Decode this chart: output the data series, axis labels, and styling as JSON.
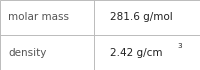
{
  "rows": [
    {
      "label": "molar mass",
      "value": "281.6 g/mol",
      "superscript": null
    },
    {
      "label": "density",
      "value": "2.42 g/cm",
      "superscript": "3"
    }
  ],
  "background_color": "#ffffff",
  "border_color": "#bbbbbb",
  "divider_color": "#bbbbbb",
  "label_color": "#555555",
  "value_color": "#222222",
  "label_fontsize": 7.5,
  "value_fontsize": 7.5,
  "superscript_fontsize": 5.2,
  "col_split": 0.47,
  "figwidth": 2.0,
  "figheight": 0.7,
  "dpi": 100
}
